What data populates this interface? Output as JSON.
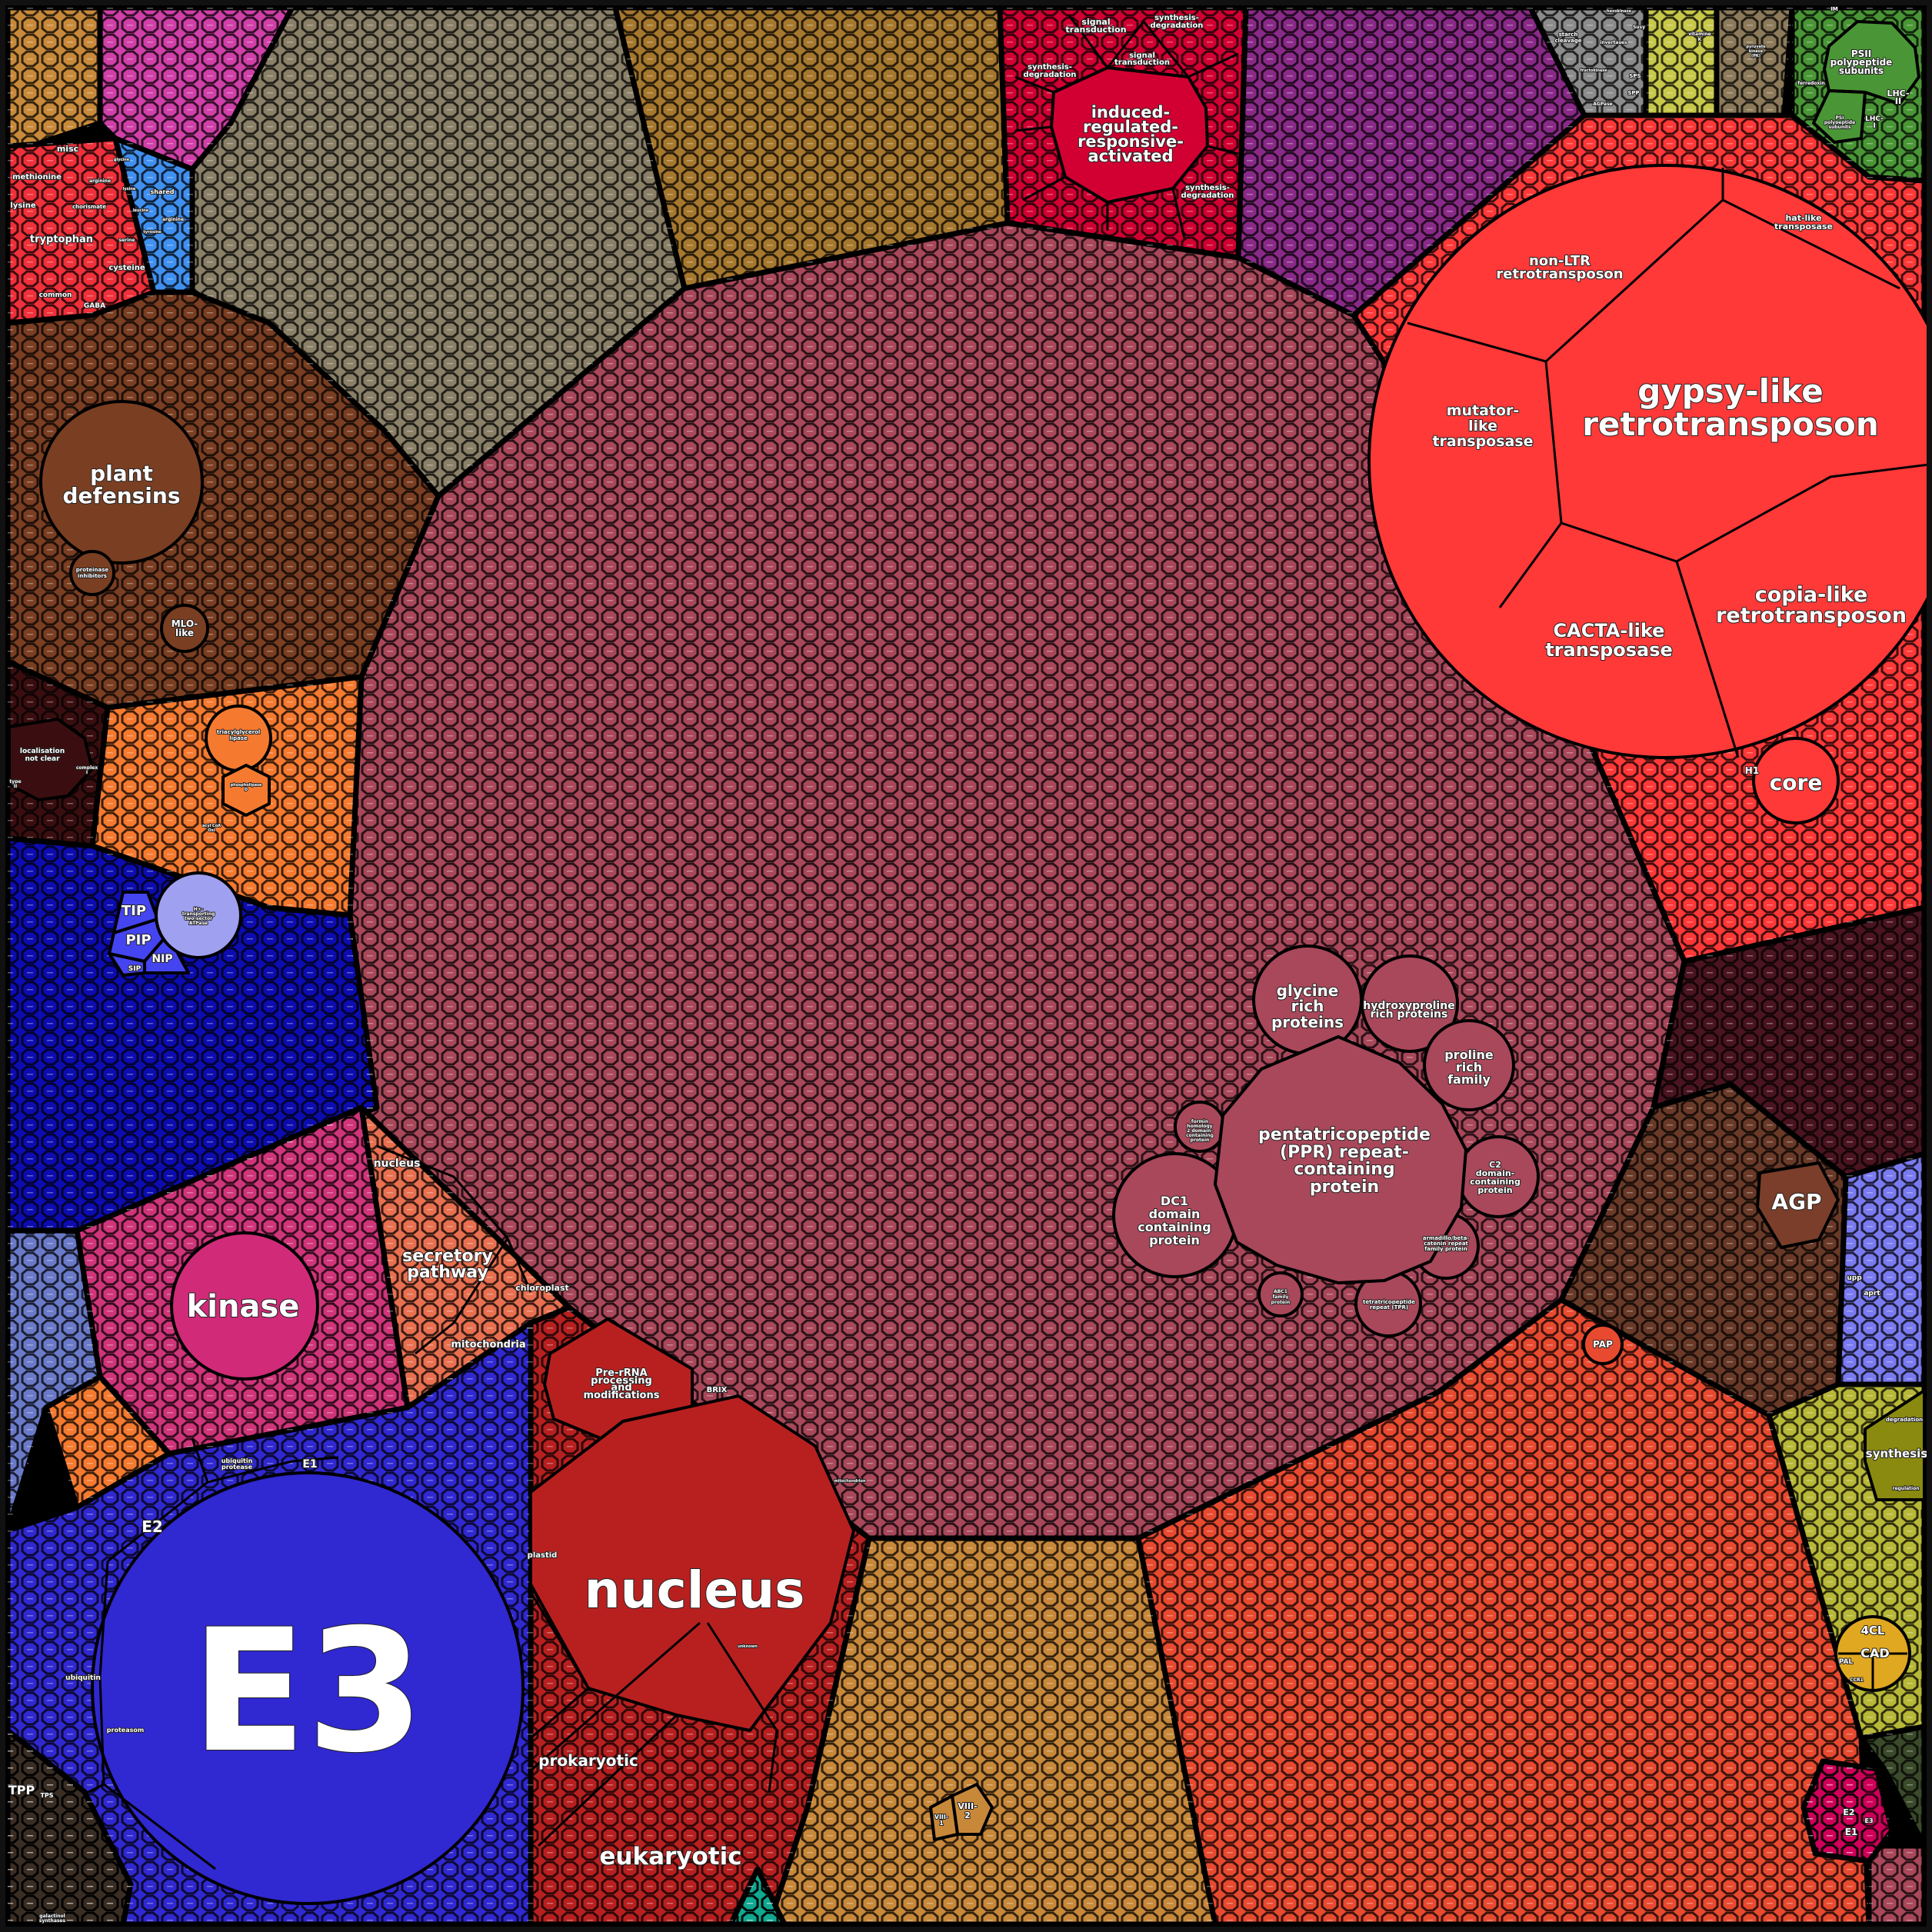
{
  "colors": {
    "background": "#000000",
    "mauve": "#a8485a",
    "transposon_red": "#ff3838",
    "crimson": "#d20032",
    "purple": "#8a2a88",
    "starch_gray": "#8c8c8c",
    "vitamin_yellow": "#c8c84a",
    "glycolysis_tan": "#8c7a5a",
    "photosynthesis_green": "#4a9636",
    "top_gray": "#8a8068",
    "top_ochre": "#a6782e",
    "pink_top": "#d040a8",
    "orange_small": "#c88a3a",
    "amino_red": "#f0303a",
    "amino_blue": "#4090f0",
    "defensin_brown": "#7a3e22",
    "dark_maroon": "#3a0e10",
    "lipid_orange": "#f57a30",
    "transport_blue": "#0c0cb0",
    "atpase_lavender": "#a0a0f0",
    "aquaporin_blue": "#4444f0",
    "kinase_pink": "#d0357a",
    "kinase_circle": "#d02a78",
    "secretory_salmon": "#e87050",
    "steel_blue": "#6a7ac8",
    "ubiquitin_blue": "#3028d0",
    "protein_red": "#b82020",
    "bottom_ochre": "#c8883a",
    "rna_orange_red": "#e84a30",
    "cellwall_brown": "#6a3a28",
    "agp_brown": "#7a3e2a",
    "dark_right": "#4a1420",
    "nucleotide_lavender": "#7a7af0",
    "secondary_olive": "#b8b838",
    "olive_dark": "#8a8a10",
    "phenyl_gold": "#e0a820",
    "magenta_small": "#d0005a",
    "dark_green": "#3a4a2a",
    "dark_brown": "#3a2e24",
    "teal": "#10a890"
  },
  "labels": {
    "gypsy": [
      "gypsy-like",
      "retrotransposon"
    ],
    "copia": [
      "copia-like",
      "retrotransposon"
    ],
    "cacta": [
      "CACTA-like",
      "transposase"
    ],
    "mutator": [
      "mutator-",
      "like",
      "transposase"
    ],
    "non_ltr": [
      "non-LTR",
      "retrotransposon"
    ],
    "hat": [
      "hat-like",
      "transposase"
    ],
    "core": "core",
    "h1": "H1",
    "induced": [
      "induced-",
      "regulated-",
      "responsive-",
      "activated"
    ],
    "signal_transduction": [
      "signal",
      "transduction"
    ],
    "synthesis_degradation": [
      "synthesis-",
      "degradation"
    ],
    "psii": [
      "PSII",
      "polypeptide",
      "subunits"
    ],
    "lhc_ii": [
      "LHC-",
      "II"
    ],
    "psi": [
      "PSI",
      "polypeptide",
      "subunits"
    ],
    "lhc_i": [
      "LHC-",
      "I"
    ],
    "ferredoxin": "ferredoxin",
    "im": "IM",
    "starch_cleavage": [
      "starch",
      "cleavage"
    ],
    "invertases": "invertases",
    "susy": "Susy",
    "fructokinase": "fructokinase",
    "sps": "SPS",
    "spp": "SPP",
    "agpase": "AGPase",
    "hexokinase": "hexokinase",
    "vitamine_k": [
      "vitamine",
      "K"
    ],
    "pyruvate_kinase": [
      "pyruvate",
      "kinase",
      "(PK)"
    ],
    "misc": "misc",
    "methionine": "methionine",
    "lysine": "lysine",
    "tryptophan": "tryptophan",
    "chorismate": "chorismate",
    "cysteine": "cysteine",
    "common": "common",
    "gaba": "GABA",
    "serine": "serine",
    "arginine": "arginine",
    "shared": "shared",
    "arginine_blue": "arginine",
    "lysine_blue": "lysine",
    "leucine": "leucine",
    "tyrosine": "tyrosine",
    "glycine": "glycine",
    "plant_defensins": [
      "plant",
      "defensins"
    ],
    "proteinase_inhibitors": [
      "proteinase",
      "inhibitors"
    ],
    "mlo_like": [
      "MLO-",
      "like"
    ],
    "localisation": [
      "localisation",
      "not clear"
    ],
    "complex_i": [
      "complex",
      "I"
    ],
    "type_ii": [
      "type",
      "II"
    ],
    "tag_lipase": [
      "triacylglycerol",
      "lipase"
    ],
    "phospholipase": [
      "phospholipase",
      "D"
    ],
    "acyl_coa": [
      "acyl CoA",
      "Oxi"
    ],
    "tip": "TIP",
    "pip": "PIP",
    "nip": "NIP",
    "sip": "SIP",
    "h_atpase": [
      "H+-",
      "transporting",
      "two-sector",
      "ATPase"
    ],
    "kinase": "kinase",
    "nucleus_small": "nucleus",
    "secretory": [
      "secretory",
      "pathway"
    ],
    "chloroplast": "chloroplast",
    "mitochondria": "mitochondria",
    "pre_rrna": [
      "Pre-rRNA",
      "processing",
      "and",
      "modifications"
    ],
    "brix": "BRIX",
    "nucleus": "nucleus",
    "plastid": "plastid",
    "prokaryotic": "prokaryotic",
    "eukaryotic": "eukaryotic",
    "mitochondrion": "mitochondrion",
    "unknown": "unknown",
    "e3": "E3",
    "e2": "E2",
    "e1": "E1",
    "ubiquitin_protease": [
      "ubiquitin",
      "protease"
    ],
    "ubiquitin": "ubiquitin",
    "proteasom": "proteasom",
    "tpp": "TPP",
    "tps": "TPS",
    "galactinol": [
      "galactinol",
      "synthases"
    ],
    "glycine_rich": [
      "glycine",
      "rich",
      "proteins"
    ],
    "hydroxyproline": [
      "hydroxyproline",
      "rich proteins"
    ],
    "proline_rich": [
      "proline",
      "rich",
      "family"
    ],
    "ppr": [
      "pentatricopeptide",
      "(PPR) repeat-",
      "containing",
      "protein"
    ],
    "dc1": [
      "DC1",
      "domain",
      "containing",
      "protein"
    ],
    "c2": [
      "C2",
      "domain-",
      "containing",
      "protein"
    ],
    "armadillo": [
      "armadillo/beta-",
      "catenin repeat",
      "family protein"
    ],
    "tpr": [
      "tetratricopeptide",
      "repeat (TPR)"
    ],
    "abc1": [
      "ABC1",
      "family",
      "protein"
    ],
    "formin": [
      "formin",
      "homology",
      "2 domain-",
      "containing",
      "protein"
    ],
    "agp": "AGP",
    "pap": "PAP",
    "upp": "upp",
    "aprt": "aprt",
    "synthesis": "synthesis",
    "degradation": "degradation",
    "regulation": "regulation",
    "c4l": "4CL",
    "cad": "CAD",
    "pal": "PAL",
    "ccr1": "CCR1",
    "viii_2": [
      "VIII-",
      "2"
    ],
    "viii_1": [
      "VIII-",
      "1"
    ],
    "e2_small": "E2",
    "e1_small": "E1",
    "e3_small": "E3"
  }
}
